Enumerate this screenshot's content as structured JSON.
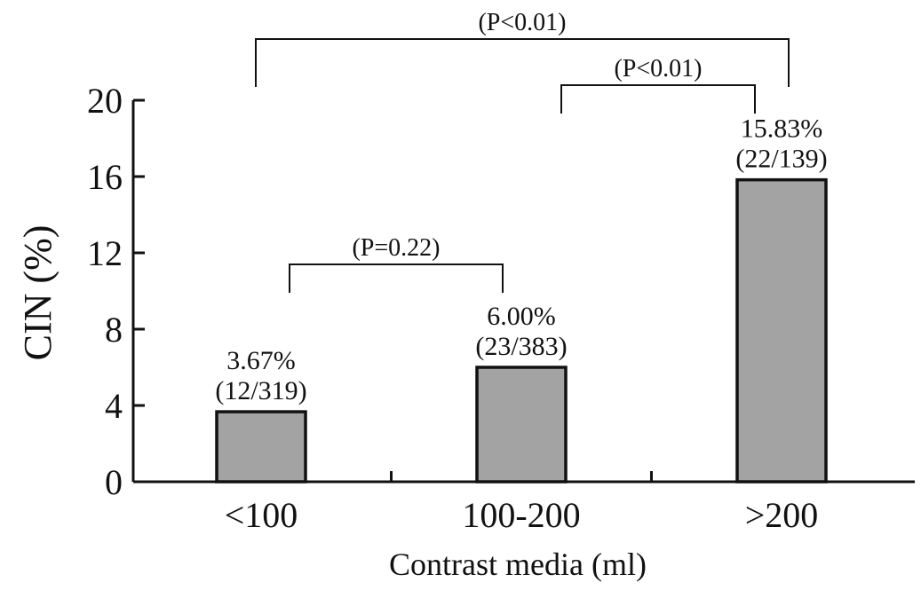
{
  "chart_data": {
    "type": "bar",
    "categories": [
      "<100",
      "100-200",
      ">200"
    ],
    "values": [
      3.67,
      6.0,
      15.83
    ],
    "value_labels": [
      "3.67%",
      "6.00%",
      "15.83%"
    ],
    "count_labels": [
      "(12/319)",
      "(23/383)",
      "(22/139)"
    ],
    "title": "",
    "xlabel": "Contrast media (ml)",
    "ylabel": "CIN (%)",
    "ylim": [
      0,
      20
    ],
    "yticks": [
      0,
      4,
      8,
      12,
      16,
      20
    ],
    "grid": false,
    "legend": "none",
    "bar_color": "#a3a3a3",
    "comparisons": [
      {
        "from": "<100",
        "to": "100-200",
        "label": "(P=0.22)"
      },
      {
        "from": "100-200",
        "to": ">200",
        "label": "(P<0.01)"
      },
      {
        "from": "<100",
        "to": ">200",
        "label": "(P<0.01)"
      }
    ]
  }
}
